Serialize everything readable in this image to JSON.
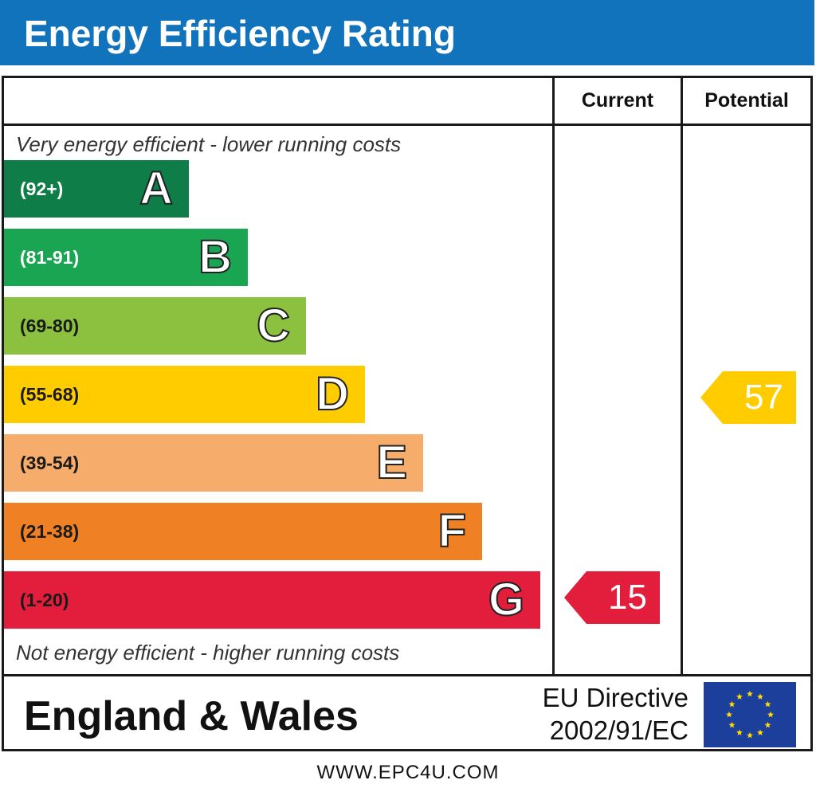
{
  "header": {
    "title": "Energy Efficiency Rating",
    "bg_color": "#1273bd"
  },
  "columns": {
    "current": "Current",
    "potential": "Potential"
  },
  "notes": {
    "top": "Very energy efficient - lower running costs",
    "bottom": "Not energy efficient - higher running costs"
  },
  "chart_data": {
    "type": "bar",
    "title": "Energy Efficiency Rating",
    "categories": [
      "A",
      "B",
      "C",
      "D",
      "E",
      "F",
      "G"
    ],
    "bands": [
      {
        "letter": "A",
        "range": "(92+)",
        "min": 92,
        "max": 100,
        "color": "#0f7d47",
        "range_color": "#ffffff"
      },
      {
        "letter": "B",
        "range": "(81-91)",
        "min": 81,
        "max": 91,
        "color": "#1aa552",
        "range_color": "#ffffff"
      },
      {
        "letter": "C",
        "range": "(69-80)",
        "min": 69,
        "max": 80,
        "color": "#8cc13f",
        "range_color": "#1a1a1a"
      },
      {
        "letter": "D",
        "range": "(55-68)",
        "min": 55,
        "max": 68,
        "color": "#ffcc00",
        "range_color": "#1a1a1a"
      },
      {
        "letter": "E",
        "range": "(39-54)",
        "min": 39,
        "max": 54,
        "color": "#f6ac6b",
        "range_color": "#1a1a1a"
      },
      {
        "letter": "F",
        "range": "(21-38)",
        "min": 21,
        "max": 38,
        "color": "#ef8023",
        "range_color": "#1a1a1a"
      },
      {
        "letter": "G",
        "range": "(1-20)",
        "min": 1,
        "max": 20,
        "color": "#e31d3c",
        "range_color": "#1a1a1a"
      }
    ],
    "series": [
      {
        "name": "Current",
        "value": 15,
        "band": "G",
        "color": "#e31d3c"
      },
      {
        "name": "Potential",
        "value": 57,
        "band": "D",
        "color": "#ffcc00"
      }
    ]
  },
  "footer": {
    "region": "England & Wales",
    "eu_line1": "EU Directive",
    "eu_line2": "2002/91/EC",
    "flag_color": "#1c3f9c",
    "star_color": "#ffdd00"
  },
  "website": "WWW.EPC4U.COM"
}
